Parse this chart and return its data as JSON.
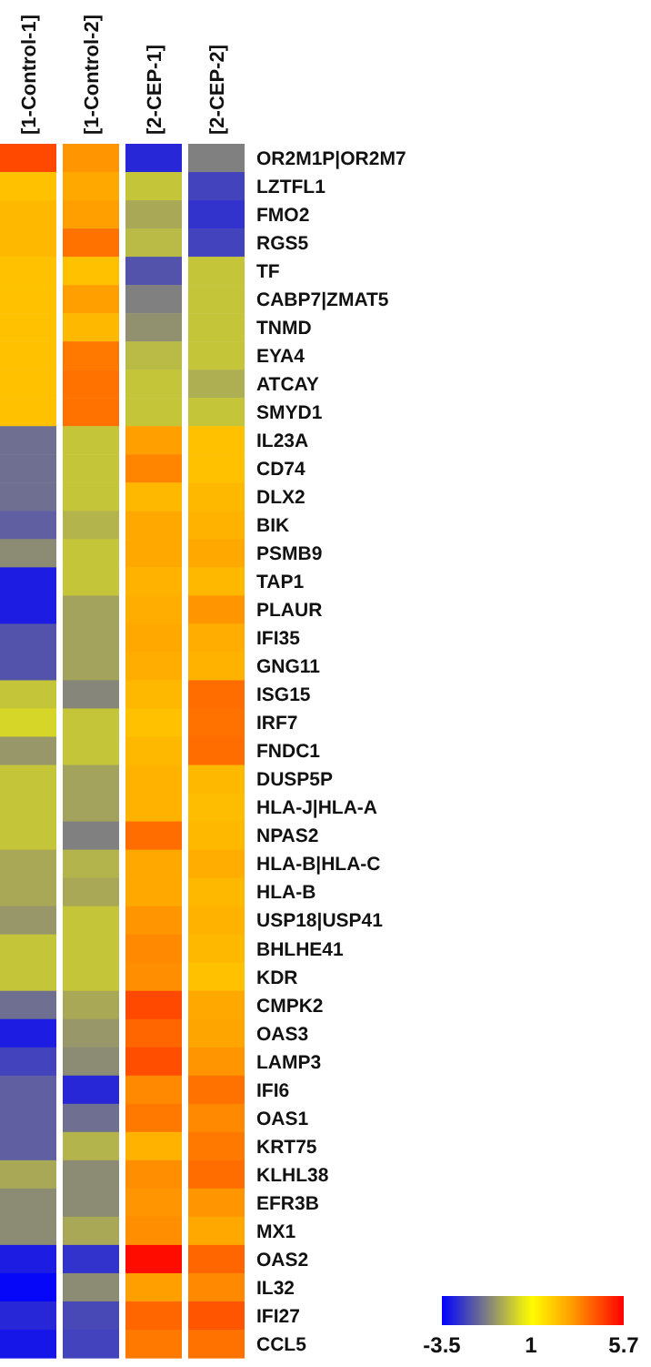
{
  "chart_data": {
    "type": "heatmap",
    "categories": [
      "[1-Control-1]",
      "[1-Control-2]",
      "[2-CEP-1]",
      "[2-CEP-2]"
    ],
    "y_categories": [
      "OR2M1P|OR2M7",
      "LZTFL1",
      "FMO2",
      "RGS5",
      "TF",
      "CABP7|ZMAT5",
      "TNMD",
      "EYA4",
      "ATCAY",
      "SMYD1",
      "IL23A",
      "CD74",
      "DLX2",
      "BIK",
      "PSMB9",
      "TAP1",
      "PLAUR",
      "IFI35",
      "GNG11",
      "ISG15",
      "IRF7",
      "FNDC1",
      "DUSP5P",
      "HLA-J|HLA-A",
      "NPAS2",
      "HLA-B|HLA-C",
      "HLA-B",
      "USP18|USP41",
      "BHLHE41",
      "KDR",
      "CMPK2",
      "OAS3",
      "LAMP3",
      "IFI6",
      "OAS1",
      "KRT75",
      "KLHL38",
      "EFR3B",
      "MX1",
      "OAS2",
      "IL32",
      "IFI27",
      "CCL5"
    ],
    "cells": [
      [
        4.5,
        3.2,
        -2.8,
        -1.2
      ],
      [
        2.3,
        2.8,
        0,
        -2.3
      ],
      [
        2.5,
        3,
        -0.5,
        -2.6
      ],
      [
        2.5,
        3.8,
        -0.2,
        -2.3
      ],
      [
        2.3,
        2.3,
        -2,
        0
      ],
      [
        2.3,
        3,
        -1.2,
        0
      ],
      [
        2.3,
        2.5,
        -0.9,
        0
      ],
      [
        2.3,
        3.7,
        -0.2,
        0
      ],
      [
        2.3,
        3.8,
        0,
        -0.4
      ],
      [
        2.3,
        3.8,
        0,
        0
      ],
      [
        -1.5,
        0,
        3,
        2.3
      ],
      [
        -1.5,
        0,
        3.5,
        2.3
      ],
      [
        -1.5,
        0,
        2.5,
        2.5
      ],
      [
        -1.8,
        -0.3,
        2.8,
        2.6
      ],
      [
        -1,
        0,
        2.8,
        2.8
      ],
      [
        -3,
        0,
        2.6,
        2.5
      ],
      [
        -3,
        -0.6,
        2.7,
        3.2
      ],
      [
        -2,
        -0.6,
        2.8,
        2.7
      ],
      [
        -2,
        -0.6,
        2.7,
        2.6
      ],
      [
        0,
        -1.1,
        2.5,
        3.9
      ],
      [
        0.3,
        0,
        2.3,
        3.8
      ],
      [
        -0.8,
        0,
        2.5,
        3.9
      ],
      [
        0,
        -0.6,
        2.6,
        2.5
      ],
      [
        0,
        -0.6,
        2.6,
        2.4
      ],
      [
        0,
        -1.2,
        3.9,
        2.5
      ],
      [
        -0.5,
        -0.3,
        2.8,
        2.7
      ],
      [
        -0.5,
        -0.5,
        2.8,
        2.5
      ],
      [
        -0.8,
        0,
        3.2,
        2.6
      ],
      [
        0,
        0,
        3.4,
        2.5
      ],
      [
        0,
        0,
        3.3,
        2.3
      ],
      [
        -1.5,
        -0.5,
        4.5,
        2.8
      ],
      [
        -3,
        -0.8,
        4,
        2.9
      ],
      [
        -2.3,
        -1,
        4.4,
        3.2
      ],
      [
        -1.8,
        -2.8,
        3.4,
        3.8
      ],
      [
        -1.8,
        -1.5,
        3.7,
        3.4
      ],
      [
        -1.8,
        -0.3,
        2.6,
        3.7
      ],
      [
        -0.5,
        -1,
        3.3,
        3.9
      ],
      [
        -1,
        -1,
        3.2,
        3.2
      ],
      [
        -1,
        -0.5,
        3.3,
        2.8
      ],
      [
        -3,
        -2.6,
        5.5,
        4
      ],
      [
        -3.4,
        -1,
        3,
        3.4
      ],
      [
        -2.8,
        -2.2,
        4,
        4.3
      ],
      [
        -3.1,
        -2.3,
        3.7,
        3.8
      ]
    ],
    "clim": [
      -3.5,
      5.7
    ],
    "cticks": [
      -3.5,
      1,
      5.7
    ]
  }
}
